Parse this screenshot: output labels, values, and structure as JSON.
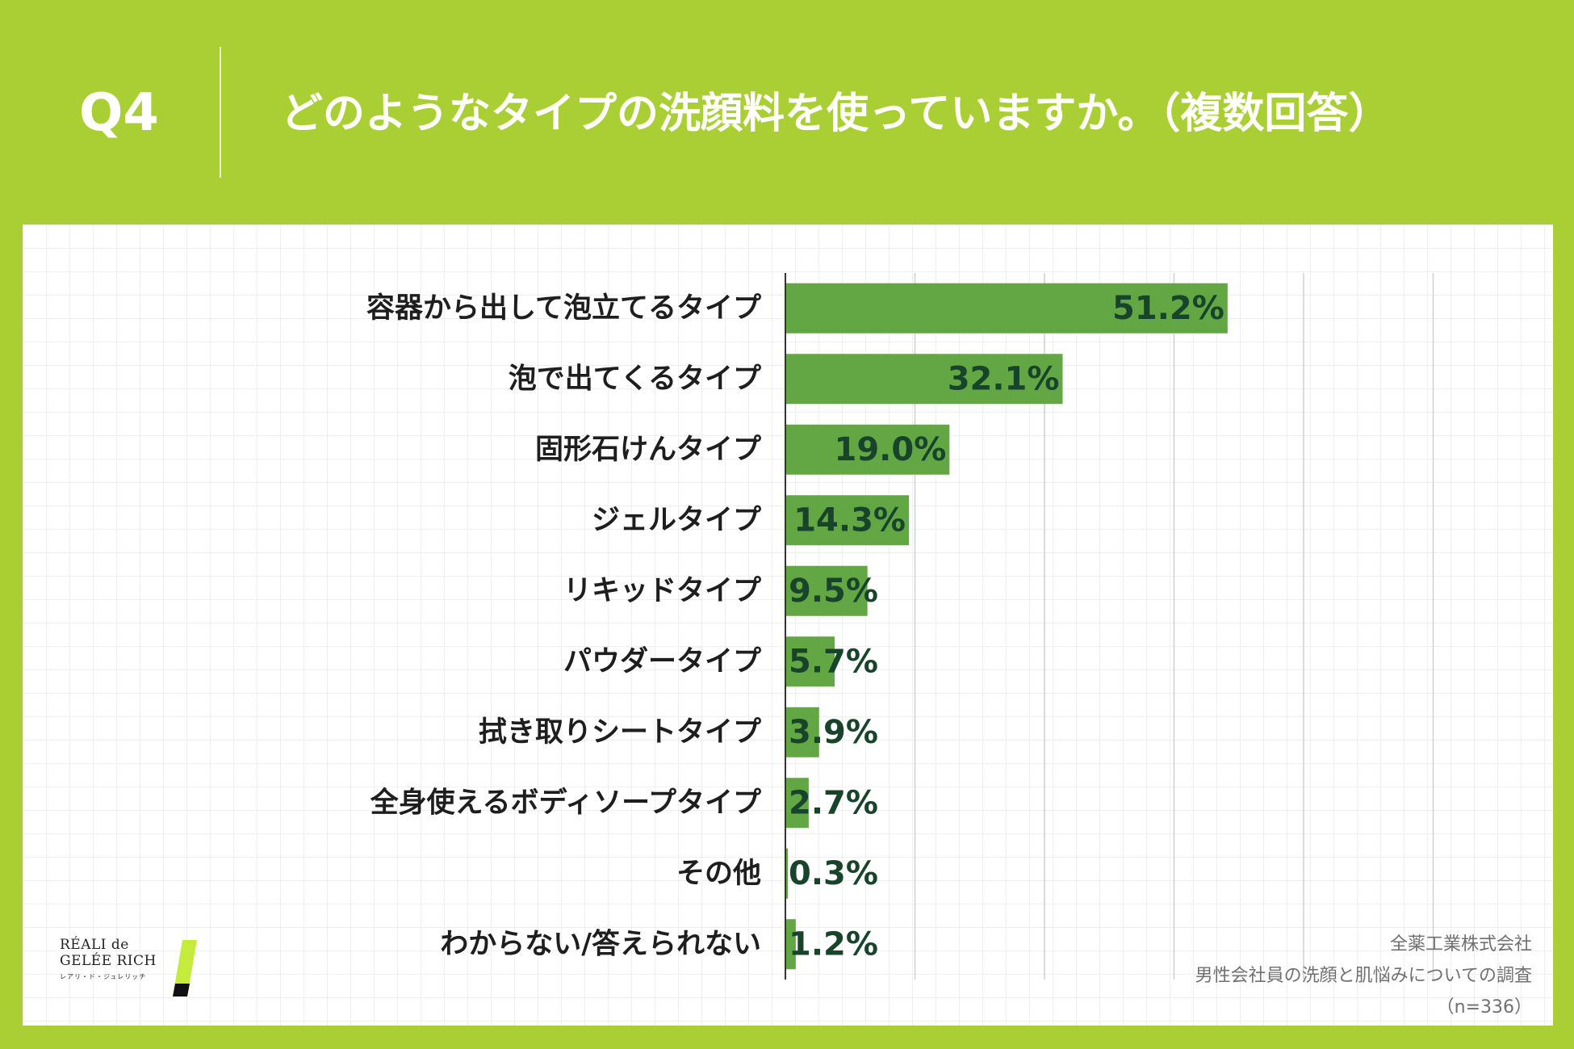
{
  "header": {
    "question_no": "Q4",
    "question_text": "どのようなタイプの洗顔料を使っていますか。（複数回答）"
  },
  "chart_data": {
    "type": "bar",
    "orientation": "horizontal",
    "title": "どのようなタイプの洗顔料を使っていますか。（複数回答）",
    "categories": [
      "容器から出して泡立てるタイプ",
      "泡で出てくるタイプ",
      "固形石けんタイプ",
      "ジェルタイプ",
      "リキッドタイプ",
      "パウダータイプ",
      "拭き取りシートタイプ",
      "全身使えるボディソープタイプ",
      "その他",
      "わからない/答えられない"
    ],
    "values": [
      51.2,
      32.1,
      19.0,
      14.3,
      9.5,
      5.7,
      3.9,
      2.7,
      0.3,
      1.2
    ],
    "value_labels": [
      "51.2%",
      "32.1%",
      "19.0%",
      "14.3%",
      "9.5%",
      "5.7%",
      "3.9%",
      "2.7%",
      "0.3%",
      "1.2%"
    ],
    "unit": "%",
    "xlim": [
      0,
      80
    ],
    "gridlines": [
      0,
      15,
      30,
      45,
      60,
      75
    ],
    "xlabel": "",
    "ylabel": "",
    "bar_color": "#62a744",
    "value_label_color": "#18442c"
  },
  "source": {
    "company": "全薬工業株式会社",
    "survey": "男性会社員の洗顔と肌悩みについての調査",
    "sample": "（n=336）"
  },
  "logo": {
    "line1": "RÉALI de",
    "line2": "GELÉE RICH",
    "line3": "レアリ・ド・ジュレリッチ"
  },
  "colors": {
    "background": "#a9cf34",
    "panel": "#ffffff",
    "text_dark": "#1e1e1e"
  }
}
